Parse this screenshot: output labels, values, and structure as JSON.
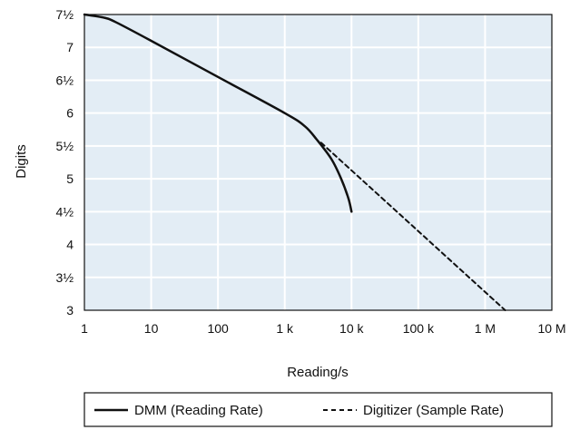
{
  "chart_data": {
    "type": "line",
    "title": "",
    "xlabel": "Reading/s",
    "ylabel": "Digits",
    "x_scale": "log",
    "xlim": [
      1,
      10000000
    ],
    "ylim": [
      3,
      7.5
    ],
    "grid": true,
    "x_ticks": [
      {
        "value": 1,
        "label": "1"
      },
      {
        "value": 10,
        "label": "10"
      },
      {
        "value": 100,
        "label": "100"
      },
      {
        "value": 1000,
        "label": "1 k"
      },
      {
        "value": 10000,
        "label": "10 k"
      },
      {
        "value": 100000,
        "label": "100 k"
      },
      {
        "value": 1000000,
        "label": "1 M"
      },
      {
        "value": 10000000,
        "label": "10 M"
      }
    ],
    "y_ticks": [
      {
        "value": 7.5,
        "label": "7½"
      },
      {
        "value": 7,
        "label": "7"
      },
      {
        "value": 6.5,
        "label": "6½"
      },
      {
        "value": 6,
        "label": "6"
      },
      {
        "value": 5.5,
        "label": "5½"
      },
      {
        "value": 5,
        "label": "5"
      },
      {
        "value": 4.5,
        "label": "4½"
      },
      {
        "value": 4,
        "label": "4"
      },
      {
        "value": 3.5,
        "label": "3½"
      },
      {
        "value": 3,
        "label": "3"
      }
    ],
    "legend_position": "bottom",
    "series": [
      {
        "name": "DMM (Reading Rate)",
        "style": "solid",
        "color": "#111111",
        "x": [
          1,
          2,
          3,
          10,
          100,
          1000,
          2000,
          3000,
          5000,
          7000,
          9000,
          10000
        ],
        "y": [
          7.5,
          7.45,
          7.38,
          7.1,
          6.55,
          6.0,
          5.8,
          5.6,
          5.3,
          5.0,
          4.7,
          4.5
        ]
      },
      {
        "name": "Digitizer (Sample Rate)",
        "style": "dashed",
        "color": "#111111",
        "x": [
          3500,
          2000000
        ],
        "y": [
          5.55,
          3.0
        ]
      }
    ],
    "colors": {
      "plot_background": "#e3edf5",
      "grid": "#ffffff",
      "frame": "#111111"
    }
  }
}
